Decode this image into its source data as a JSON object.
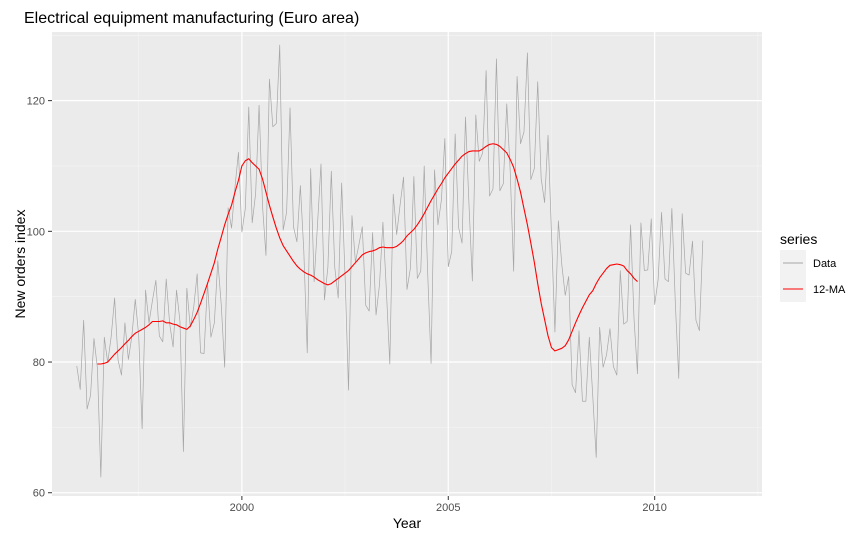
{
  "chart_data": {
    "type": "line",
    "title": "Electrical equipment manufacturing (Euro area)",
    "xlabel": "Year",
    "ylabel": "New orders index",
    "xlim": [
      1995.4,
      2012.6
    ],
    "ylim": [
      59.5,
      130.5
    ],
    "x_ticks": [
      2000,
      2005,
      2010
    ],
    "x_tick_labels": [
      "2000",
      "2005",
      "2010"
    ],
    "y_ticks": [
      60,
      80,
      100,
      120
    ],
    "y_tick_labels": [
      "60",
      "80",
      "100",
      "120"
    ],
    "grid": true,
    "background": "#EBEBEB",
    "legend": {
      "title": "series",
      "position": "right",
      "entries": [
        {
          "label": "Data",
          "color": "#A6A6A6"
        },
        {
          "label": "12-MA",
          "color": "#FF0000"
        }
      ]
    },
    "series": [
      {
        "name": "Data",
        "color": "#A6A6A6",
        "x_start": 1996.0,
        "step": 0.0833333,
        "values": [
          79.4,
          75.8,
          86.4,
          72.8,
          74.9,
          83.6,
          79.1,
          62.4,
          83.8,
          79.9,
          83.9,
          89.8,
          80.3,
          78.0,
          86.0,
          80.4,
          83.9,
          89.6,
          84.1,
          69.8,
          91.0,
          86.0,
          89.4,
          92.5,
          84.0,
          83.1,
          92.7,
          85.9,
          82.3,
          91.0,
          86.2,
          66.3,
          91.3,
          85.3,
          88.4,
          93.5,
          81.4,
          81.3,
          92.1,
          83.8,
          86.0,
          95.5,
          88.8,
          79.2,
          103.6,
          100.5,
          106.8,
          112.1,
          99.9,
          103.5,
          119.0,
          101.3,
          105.8,
          119.3,
          103.9,
          96.3,
          123.3,
          116.0,
          116.5,
          128.5,
          100.2,
          102.9,
          118.9,
          100.7,
          98.4,
          107.0,
          97.0,
          81.4,
          109.6,
          92.3,
          101.2,
          110.3,
          89.5,
          94.5,
          109.2,
          94.5,
          89.8,
          107.4,
          93.1,
          75.7,
          102.4,
          95.3,
          97.9,
          100.7,
          88.7,
          87.8,
          99.8,
          87.2,
          91.8,
          101.4,
          91.0,
          79.7,
          105.7,
          99.5,
          104.1,
          108.3,
          91.1,
          94.4,
          108.4,
          92.8,
          93.9,
          110.0,
          93.8,
          79.8,
          109.4,
          101.0,
          104.8,
          114.2,
          94.6,
          96.9,
          114.9,
          100.6,
          98.2,
          117.5,
          104.3,
          92.4,
          117.8,
          110.7,
          112.0,
          124.6,
          105.4,
          106.5,
          126.4,
          106.2,
          107.3,
          119.5,
          109.2,
          93.9,
          123.7,
          113.4,
          115.2,
          127.3,
          107.9,
          109.6,
          122.9,
          108.1,
          104.4,
          114.7,
          99.6,
          84.6,
          101.6,
          94.9,
          90.2,
          93.1,
          76.5,
          75.3,
          84.8,
          74.0,
          74.0,
          83.8,
          74.8,
          65.4,
          85.3,
          79.2,
          81.1,
          85.1,
          79.3,
          78.0,
          94.0,
          85.8,
          86.2,
          101.0,
          86.6,
          78.2,
          101.3,
          94.0,
          94.1,
          101.9,
          88.8,
          92.6,
          102.9,
          92.7,
          92.3,
          103.5,
          89.1,
          77.5,
          102.7,
          93.6,
          93.3,
          98.5,
          86.4,
          84.8,
          98.6
        ]
      },
      {
        "name": "12-MA",
        "color": "#FF0000",
        "x_start": 1996.5,
        "step": 0.0833333,
        "values": [
          79.7,
          79.7,
          79.8,
          80.0,
          80.6,
          81.2,
          81.7,
          82.2,
          82.8,
          83.3,
          83.9,
          84.4,
          84.7,
          85.0,
          85.3,
          85.7,
          86.2,
          86.2,
          86.2,
          86.3,
          86.0,
          86.0,
          85.8,
          85.7,
          85.4,
          85.2,
          85.0,
          85.5,
          86.5,
          87.6,
          89.0,
          90.5,
          92.0,
          93.6,
          95.2,
          97.3,
          99.1,
          101.0,
          102.6,
          104.0,
          106.0,
          107.8,
          110.0,
          110.8,
          111.1,
          110.5,
          110.0,
          109.5,
          108.0,
          106.0,
          104.0,
          102.2,
          100.5,
          99.0,
          97.8,
          97.0,
          96.2,
          95.4,
          94.7,
          94.2,
          93.8,
          93.5,
          93.3,
          93.0,
          92.6,
          92.3,
          92.0,
          91.8,
          92.0,
          92.4,
          92.8,
          93.2,
          93.6,
          94.0,
          94.6,
          95.2,
          95.8,
          96.4,
          96.7,
          96.9,
          97.0,
          97.2,
          97.5,
          97.6,
          97.5,
          97.5,
          97.5,
          97.7,
          98.1,
          98.6,
          99.3,
          99.8,
          100.3,
          101.0,
          101.8,
          102.7,
          103.7,
          104.7,
          105.6,
          106.5,
          107.3,
          108.2,
          108.9,
          109.6,
          110.3,
          110.9,
          111.5,
          111.9,
          112.2,
          112.3,
          112.3,
          112.3,
          112.6,
          113.0,
          113.3,
          113.4,
          113.3,
          113.0,
          112.5,
          112.0,
          111.0,
          109.8,
          108.0,
          106.0,
          103.5,
          101.0,
          98.2,
          95.3,
          92.0,
          89.0,
          86.5,
          84.0,
          82.2,
          81.7,
          81.9,
          82.1,
          82.5,
          83.4,
          84.7,
          86.0,
          87.2,
          88.3,
          89.3,
          90.3,
          90.9,
          92.0,
          92.9,
          93.6,
          94.3,
          94.8,
          94.9,
          95.0,
          94.9,
          94.7,
          94.0,
          93.5,
          92.8,
          92.3
        ]
      }
    ]
  }
}
